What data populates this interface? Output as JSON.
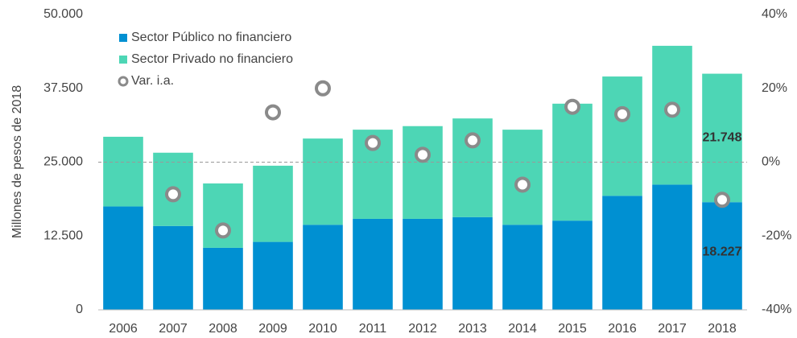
{
  "chart_data": {
    "type": "bar",
    "stacked": true,
    "y_label": "Millones de pesos de 2018",
    "categories": [
      "2006",
      "2007",
      "2008",
      "2009",
      "2010",
      "2011",
      "2012",
      "2013",
      "2014",
      "2015",
      "2016",
      "2017",
      "2018"
    ],
    "series": [
      {
        "name": "Sector Público no financiero",
        "type": "bar",
        "color": "#0090d2",
        "values": [
          17500,
          14200,
          10500,
          11500,
          14400,
          15400,
          15400,
          15700,
          14400,
          15100,
          19300,
          21200,
          18227
        ],
        "value_labels": [
          null,
          null,
          null,
          null,
          null,
          null,
          null,
          null,
          null,
          null,
          null,
          null,
          "18.227"
        ]
      },
      {
        "name": "Sector Privado no financiero",
        "type": "bar",
        "color": "#4dd6b5",
        "values": [
          11800,
          12400,
          10900,
          12900,
          14600,
          15100,
          15700,
          16700,
          16100,
          19800,
          20200,
          23500,
          21748
        ],
        "value_labels": [
          null,
          null,
          null,
          null,
          null,
          null,
          null,
          null,
          null,
          null,
          null,
          null,
          "21.748"
        ]
      },
      {
        "name": "Var. i.a.",
        "type": "scatter",
        "axis": "y2",
        "color": "#8a8a8a",
        "values": [
          null,
          -8.7,
          -18.5,
          13.5,
          20,
          5.2,
          2,
          5.9,
          -6.1,
          15,
          13,
          14.2,
          -10.2
        ]
      }
    ],
    "ylim": [
      0,
      50000
    ],
    "yticks": [
      0,
      {
        "value": 12500,
        "label": "12.500"
      },
      {
        "value": 25000,
        "label": "25.000"
      },
      {
        "value": 37500,
        "label": "37.500"
      },
      {
        "value": 50000,
        "label": "50.000"
      }
    ],
    "y2lim": [
      -40,
      40
    ],
    "y2ticks": [
      {
        "value": -40,
        "label": "-40%"
      },
      {
        "value": -20,
        "label": "-20%"
      },
      {
        "value": 0,
        "label": "0%"
      },
      {
        "value": 20,
        "label": "20%"
      },
      {
        "value": 40,
        "label": "40%"
      }
    ],
    "y2_zero_line": true,
    "legend": "top-left"
  }
}
